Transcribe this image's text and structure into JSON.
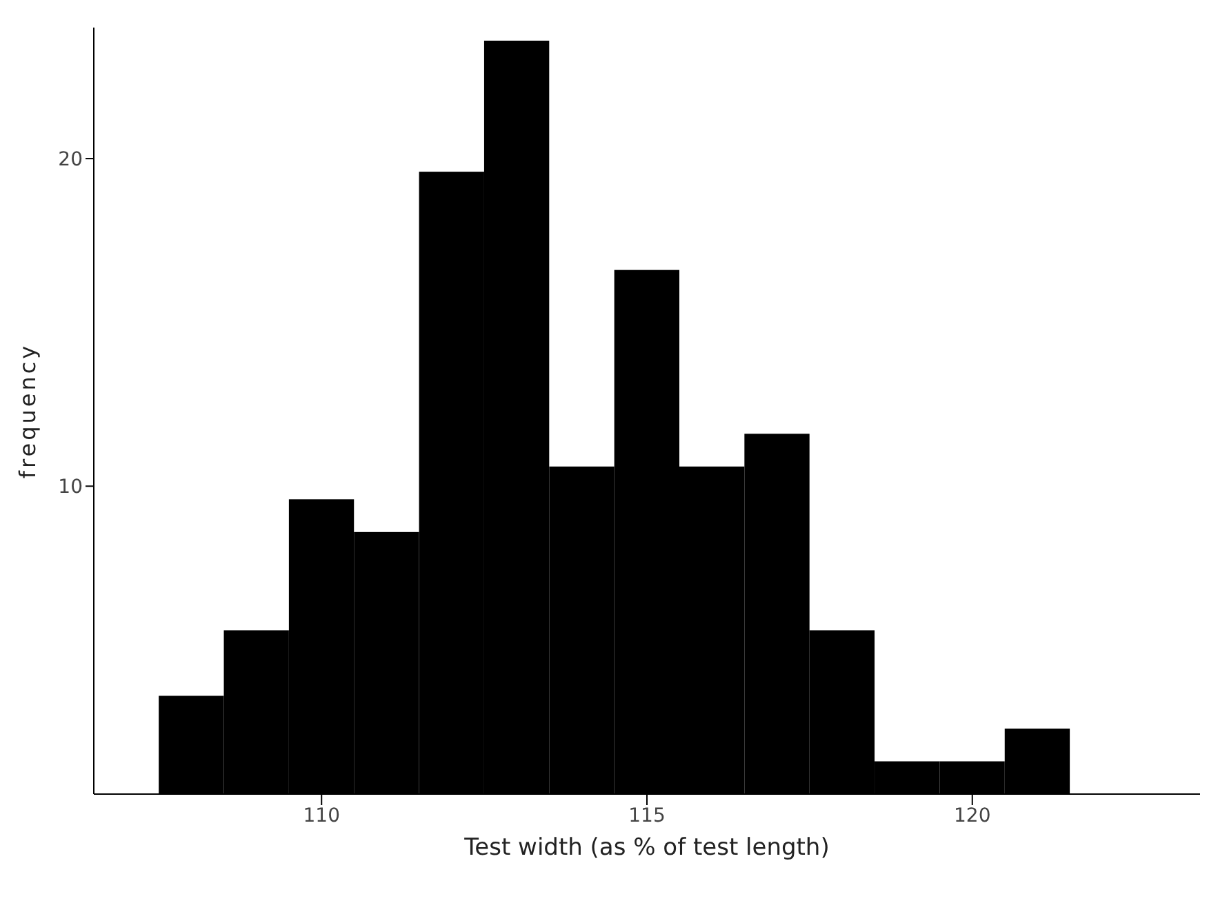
{
  "chart_data": {
    "type": "histogram",
    "xlabel": "Test width (as % of test length)",
    "ylabel": "frequency",
    "bins": [
      107.5,
      108.5,
      109.5,
      110.5,
      111.5,
      112.5,
      113.5,
      114.5,
      115.5,
      116.5,
      117.5,
      118.5,
      119.5,
      120.5,
      121.5
    ],
    "values": [
      3.6,
      5.6,
      9.6,
      8.6,
      19.6,
      23.6,
      10.6,
      16.6,
      10.6,
      11.6,
      5.6,
      1.6,
      1.6,
      2.6
    ],
    "color": "#000000",
    "xlim": [
      106.5,
      123.5
    ],
    "ylim": [
      0.6,
      24
    ],
    "xticks": [
      110,
      115,
      120
    ],
    "yticks": [
      10,
      20
    ],
    "grid": false,
    "legend": false
  }
}
